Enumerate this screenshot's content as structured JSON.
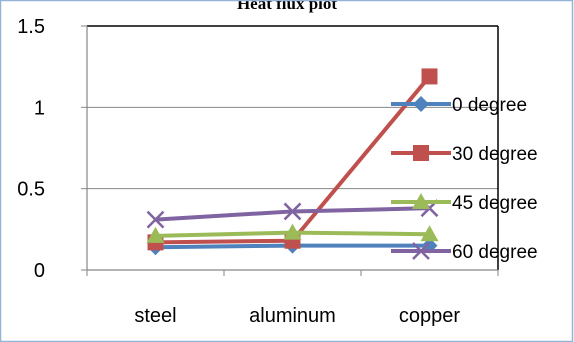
{
  "chart_data": {
    "type": "line",
    "title": "Heat flux plot",
    "categories": [
      "steel",
      "aluminum",
      "copper"
    ],
    "ylim": [
      0,
      1.5
    ],
    "yticks": [
      0,
      0.5,
      1,
      1.5
    ],
    "ytick_labels": [
      "0",
      "0.5",
      "1",
      "1.5"
    ],
    "grid": "horizontal",
    "legend": "right",
    "series": [
      {
        "name": "0 degree",
        "values": [
          0.14,
          0.15,
          0.15
        ],
        "color": "#4f81bd",
        "marker": "diamond"
      },
      {
        "name": "30 degree",
        "values": [
          0.17,
          0.18,
          1.19
        ],
        "color": "#c0504d",
        "marker": "square"
      },
      {
        "name": "45 degree",
        "values": [
          0.21,
          0.23,
          0.22
        ],
        "color": "#9bbb59",
        "marker": "triangle"
      },
      {
        "name": "60 degree",
        "values": [
          0.31,
          0.36,
          0.38
        ],
        "color": "#8064a2",
        "marker": "x"
      }
    ],
    "colors": {
      "frame": "#95b3d7",
      "axis": "#868686",
      "grid": "#868686"
    }
  }
}
